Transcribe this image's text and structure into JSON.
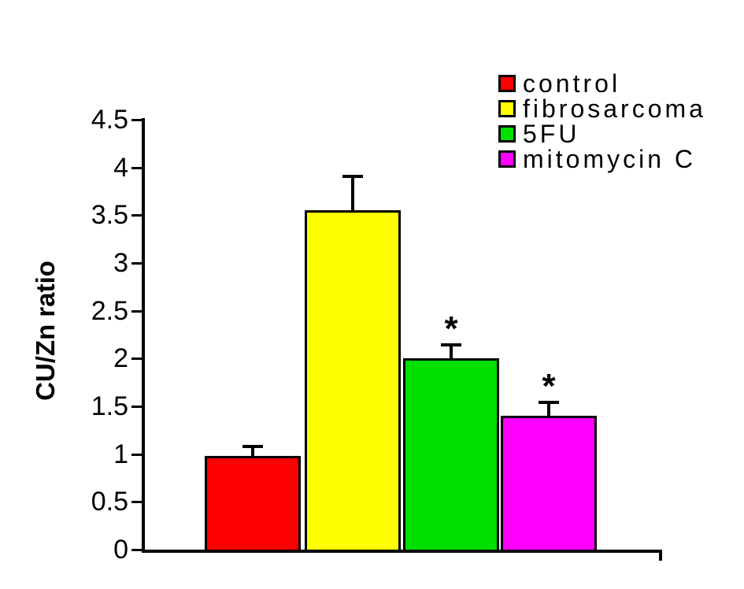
{
  "chart_data": {
    "type": "bar",
    "title": "",
    "ylabel": "CU/Zn ratio",
    "xlabel": "",
    "ylim": [
      0,
      4.5
    ],
    "ytick_step": 0.5,
    "ytick_labels": [
      "0",
      "0.5",
      "1",
      "1.5",
      "2",
      "2.5",
      "3",
      "3.5",
      "4",
      "4.5"
    ],
    "categories": [
      "control",
      "fibrosarcoma",
      "5FU",
      "mitomycin C"
    ],
    "series": [
      {
        "name": "CU/Zn ratio",
        "values": [
          0.98,
          3.55,
          2.0,
          1.4
        ],
        "errors_plus": [
          0.1,
          0.36,
          0.14,
          0.14
        ],
        "colors": [
          "#ff0000",
          "#ffff00",
          "#00e000",
          "#ff00ff"
        ],
        "significance": [
          "",
          "",
          "*",
          "*"
        ]
      }
    ],
    "significance_marker": "*",
    "error_bars": true,
    "grid": false,
    "legend": {
      "position": "top-right",
      "entries": [
        {
          "label": "control",
          "color": "#ff0000"
        },
        {
          "label": "fibrosarcoma",
          "color": "#ffff00"
        },
        {
          "label": "5FU",
          "color": "#00e000"
        },
        {
          "label": "mitomycin C",
          "color": "#ff00ff"
        }
      ]
    },
    "axis_color": "#000000",
    "background_color": "#ffffff"
  }
}
